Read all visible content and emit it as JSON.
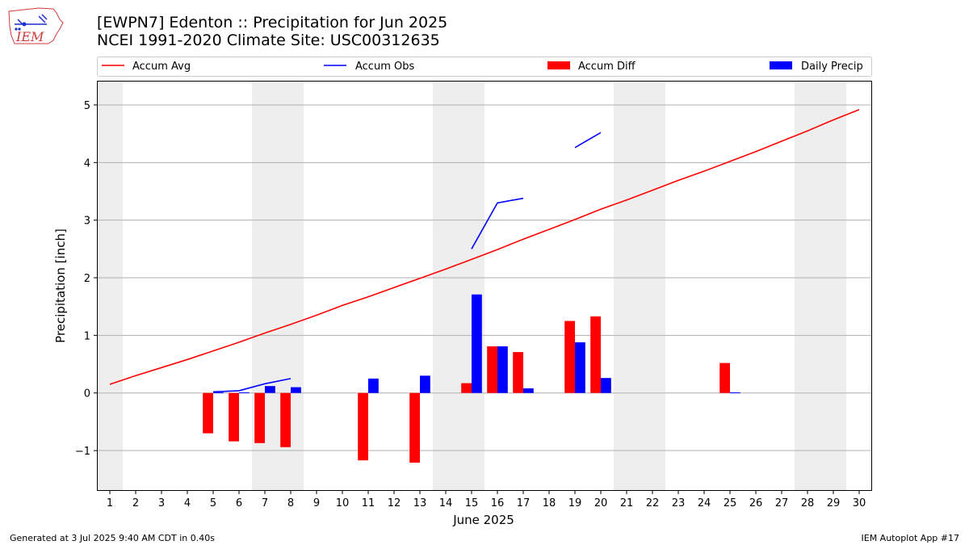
{
  "header": {
    "title_line1": "[EWPN7] Edenton :: Precipitation for Jun 2025",
    "title_line2": "NCEI 1991-2020 Climate Site: USC00312635",
    "logo_text": "IEM"
  },
  "footer": {
    "generated": "Generated at 3 Jul 2025 9:40 AM CDT in 0.40s",
    "app": "IEM Autoplot App #17"
  },
  "colors": {
    "avg": "#ff0000",
    "obs": "#0000ff",
    "diff": "#ff0000",
    "daily": "#0000ff",
    "weekend": "#eeeeee",
    "grid": "#b0b0b0"
  },
  "chart_data": {
    "type": "bar",
    "xlabel": "June 2025",
    "ylabel": "Precipitation [inch]",
    "xlim": [
      0.5,
      30.5
    ],
    "ylim": [
      -1.7,
      5.42
    ],
    "yticks": [
      -1,
      0,
      1,
      2,
      3,
      4,
      5
    ],
    "ytick_labels": [
      "−1",
      "0",
      "1",
      "2",
      "3",
      "4",
      "5"
    ],
    "grid": "y-axis on",
    "legend_position": "top",
    "weekend_days": [
      1,
      7,
      8,
      14,
      15,
      21,
      22,
      28,
      29
    ],
    "days": [
      1,
      2,
      3,
      4,
      5,
      6,
      7,
      8,
      9,
      10,
      11,
      12,
      13,
      14,
      15,
      16,
      17,
      18,
      19,
      20,
      21,
      22,
      23,
      24,
      25,
      26,
      27,
      28,
      29,
      30
    ],
    "legend": [
      "Accum Avg",
      "Accum Obs",
      "Accum Diff",
      "Daily Precip"
    ],
    "series": [
      {
        "name": "Accum Avg",
        "kind": "line",
        "values": [
          0.15,
          0.3,
          0.44,
          0.58,
          0.73,
          0.88,
          1.04,
          1.19,
          1.35,
          1.52,
          1.67,
          1.83,
          1.99,
          2.15,
          2.32,
          2.49,
          2.67,
          2.84,
          3.01,
          3.19,
          3.35,
          3.52,
          3.69,
          3.85,
          4.02,
          4.19,
          4.37,
          4.55,
          4.74,
          4.92
        ]
      },
      {
        "name": "Accum Obs",
        "kind": "line",
        "values": [
          null,
          null,
          null,
          null,
          0.02,
          0.04,
          0.16,
          0.25,
          null,
          null,
          null,
          null,
          null,
          null,
          2.5,
          3.3,
          3.38,
          null,
          4.26,
          4.52,
          null,
          null,
          null,
          null,
          null,
          null,
          null,
          null,
          null,
          null
        ]
      },
      {
        "name": "Accum Diff",
        "kind": "bar",
        "values": [
          null,
          null,
          null,
          null,
          -0.7,
          -0.84,
          -0.87,
          -0.94,
          null,
          null,
          -1.17,
          null,
          -1.21,
          null,
          0.17,
          0.81,
          0.71,
          null,
          1.25,
          1.33,
          null,
          null,
          null,
          null,
          0.52,
          null,
          null,
          null,
          null,
          null
        ]
      },
      {
        "name": "Daily Precip",
        "kind": "bar",
        "values": [
          null,
          null,
          null,
          null,
          0.01,
          0.01,
          0.12,
          0.1,
          null,
          null,
          0.25,
          null,
          0.3,
          null,
          1.71,
          0.81,
          0.08,
          null,
          0.88,
          0.26,
          null,
          null,
          null,
          null,
          0.01,
          null,
          null,
          null,
          null,
          null
        ]
      }
    ]
  }
}
